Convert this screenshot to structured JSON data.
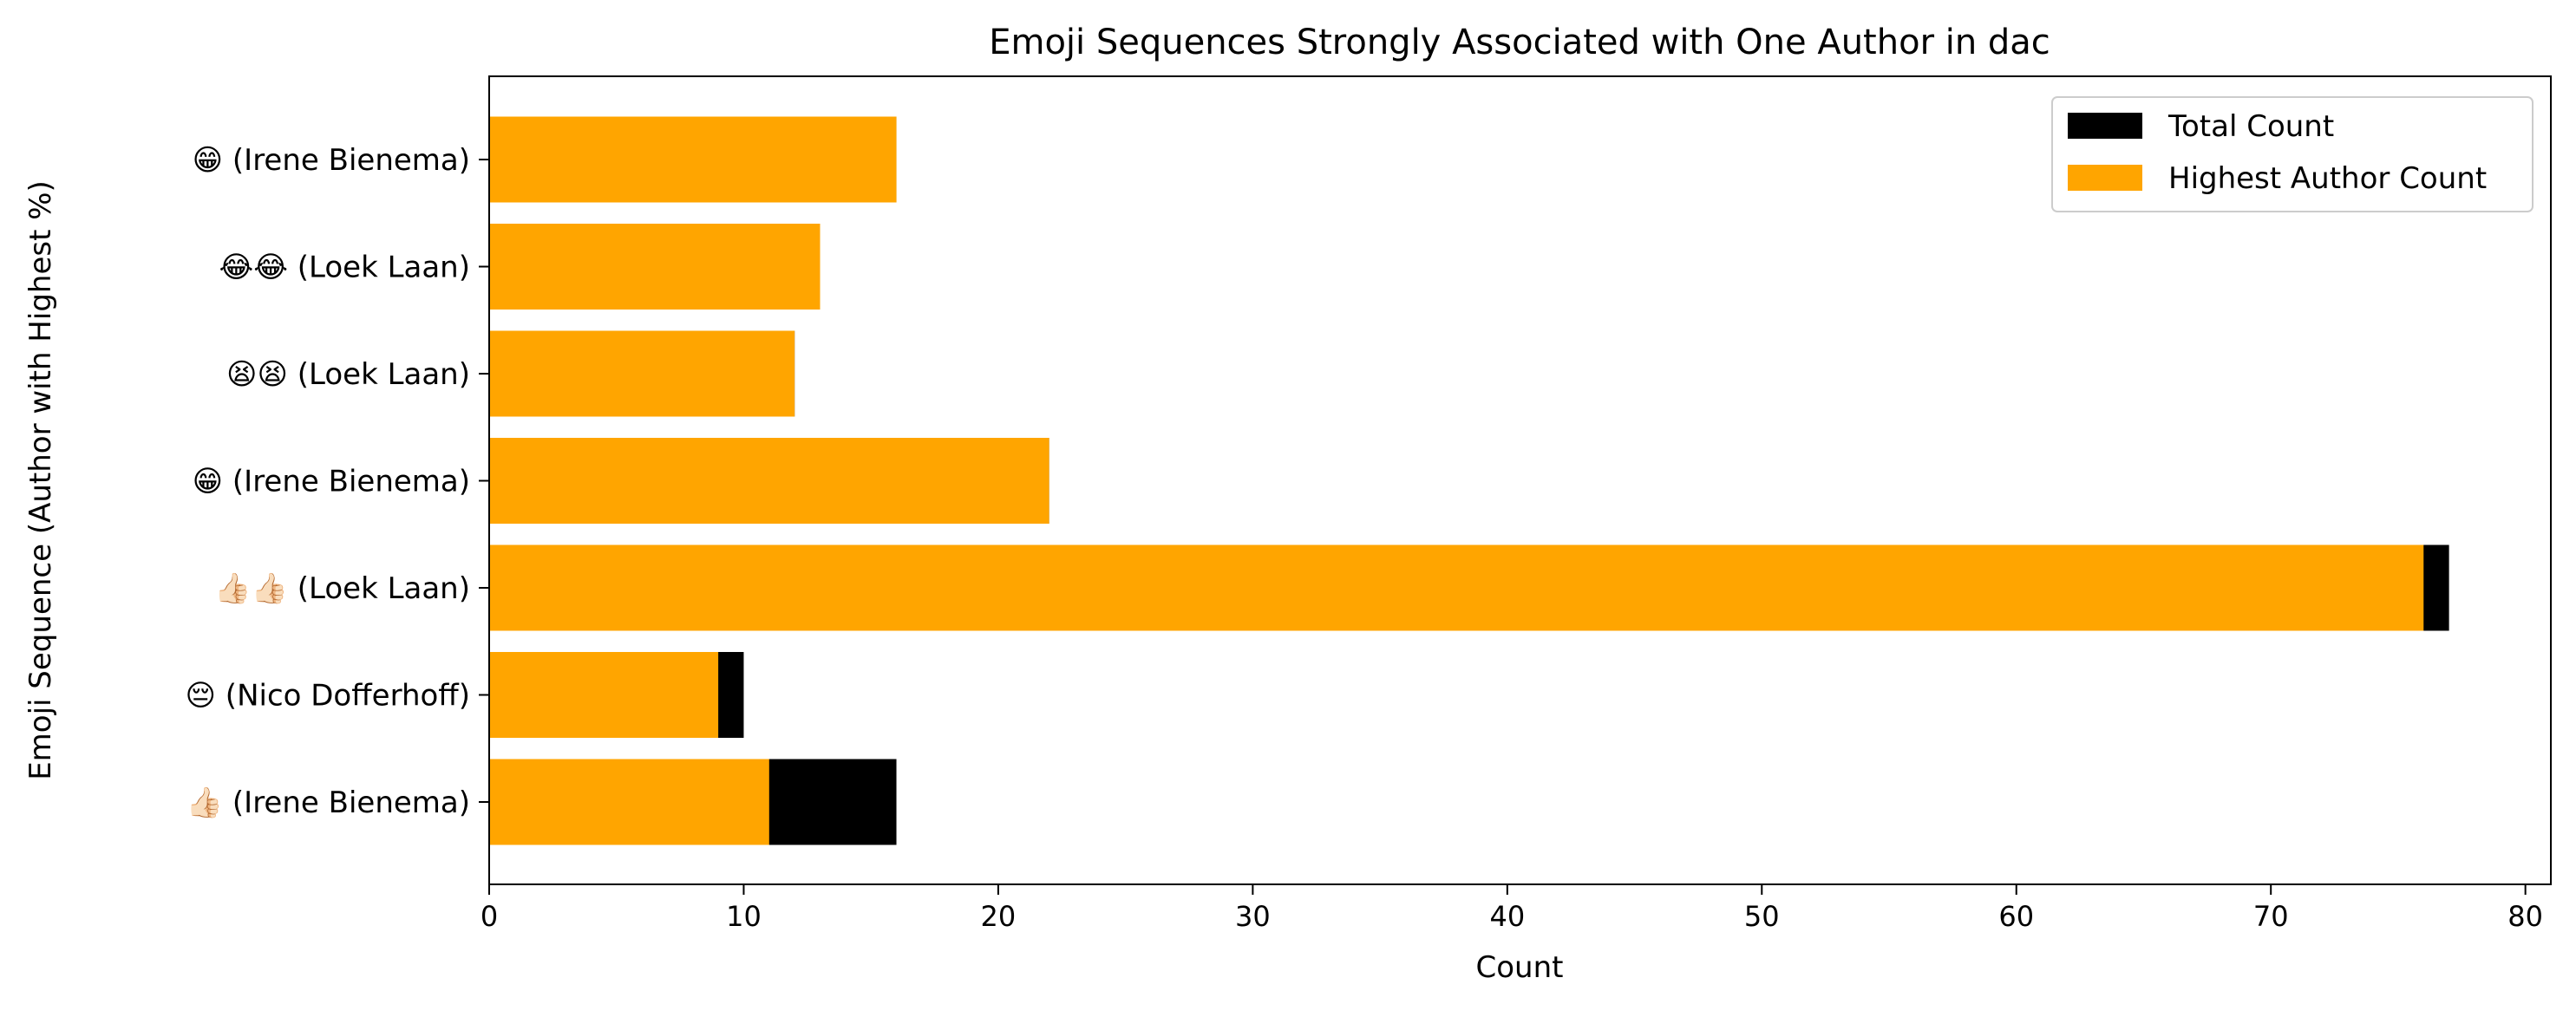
{
  "chart_data": {
    "type": "bar",
    "orientation": "horizontal",
    "title": "Emoji Sequences Strongly Associated with One Author in dac",
    "xlabel": "Count",
    "ylabel": "Emoji Sequence (Author with Highest %)",
    "xlim": [
      0,
      81
    ],
    "xticks": [
      0,
      10,
      20,
      30,
      40,
      50,
      60,
      70,
      80
    ],
    "grid": false,
    "legend_position": "top-right",
    "categories": [
      "😁 (Irene Bienema)",
      "😂😂 (Loek Laan)",
      "😫😫 (Loek Laan)",
      "😁 (Irene Bienema)",
      "👍🏻👍🏻 (Loek Laan)",
      "😔 (Nico Dofferhoff)",
      "👍🏻 (Irene Bienema)"
    ],
    "series": [
      {
        "name": "Total Count",
        "color": "#000000",
        "values": [
          16,
          13,
          12,
          22,
          77,
          10,
          16
        ]
      },
      {
        "name": "Highest Author Count",
        "color": "#FFA500",
        "values": [
          16,
          13,
          12,
          22,
          76,
          9,
          11
        ]
      }
    ]
  }
}
